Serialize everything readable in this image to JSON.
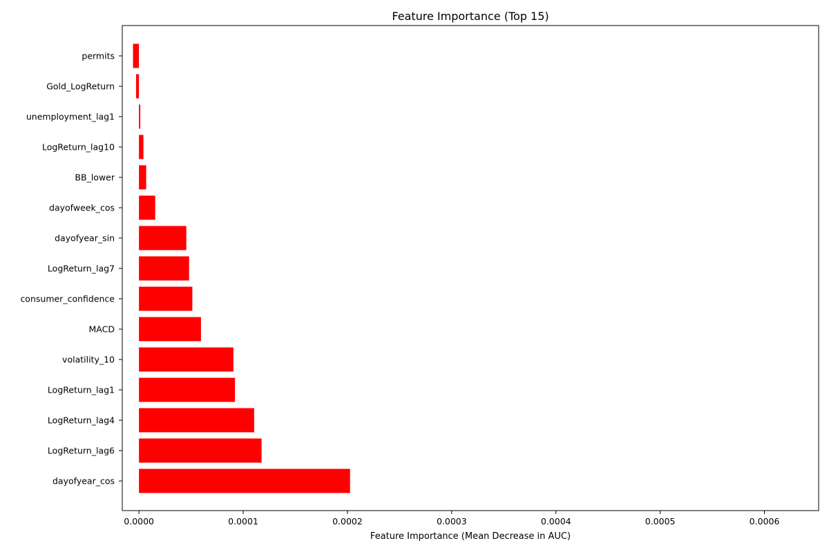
{
  "chart_data": {
    "type": "bar",
    "orientation": "horizontal",
    "title": "Feature Importance (Top 15)",
    "xlabel": "Feature Importance (Mean Decrease in AUC)",
    "ylabel": "",
    "xlim": [
      -1.6e-05,
      0.000652
    ],
    "x_ticks": [
      0.0,
      0.0001,
      0.0002,
      0.0003,
      0.0004,
      0.0005,
      0.0006
    ],
    "x_tick_labels": [
      "0.0000",
      "0.0001",
      "0.0002",
      "0.0003",
      "0.0004",
      "0.0005",
      "0.0006"
    ],
    "categories": [
      "permits",
      "Gold_LogReturn",
      "unemployment_lag1",
      "LogReturn_lag10",
      "BB_lower",
      "dayofweek_cos",
      "dayofyear_sin",
      "LogReturn_lag7",
      "consumer_confidence",
      "MACD",
      "volatility_10",
      "LogReturn_lag1",
      "LogReturn_lag4",
      "LogReturn_lag6",
      "dayofyear_cos"
    ],
    "values": [
      -5.7e-06,
      -2.8e-06,
      1.3e-06,
      4.3e-06,
      6.9e-06,
      1.56e-05,
      4.54e-05,
      4.81e-05,
      5.12e-05,
      5.95e-05,
      9.06e-05,
      9.21e-05,
      0.0001105,
      0.0001176,
      0.0002025
    ],
    "color": "#ff0000",
    "grid": false,
    "legend": "none"
  }
}
